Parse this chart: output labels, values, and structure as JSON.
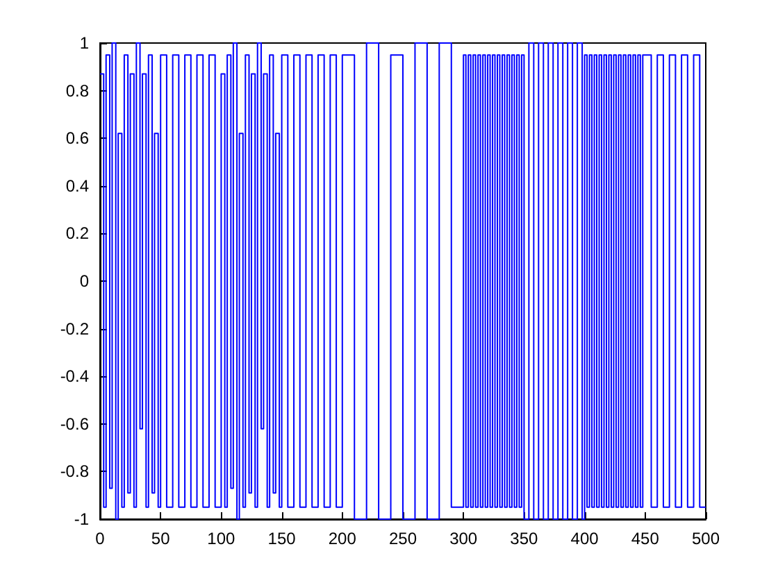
{
  "chart_data": {
    "type": "step",
    "color": "#0000ff",
    "x": [
      0,
      3,
      5,
      8,
      10,
      13,
      15,
      18,
      20,
      23,
      25,
      28,
      30,
      33,
      35,
      38,
      40,
      43,
      45,
      48,
      50,
      55,
      60,
      65,
      70,
      75,
      80,
      85,
      90,
      95,
      100,
      103,
      105,
      108,
      110,
      113,
      115,
      118,
      120,
      123,
      125,
      128,
      130,
      133,
      135,
      138,
      140,
      143,
      145,
      148,
      150,
      155,
      160,
      165,
      170,
      175,
      180,
      185,
      190,
      195,
      200,
      210,
      220,
      230,
      240,
      250,
      260,
      270,
      280,
      290,
      300,
      302,
      304,
      306,
      308,
      310,
      312,
      314,
      316,
      318,
      320,
      322,
      324,
      326,
      328,
      330,
      332,
      334,
      336,
      338,
      340,
      342,
      344,
      346,
      348,
      350,
      354,
      358,
      362,
      366,
      370,
      374,
      378,
      382,
      386,
      390,
      394,
      398,
      400,
      402,
      404,
      406,
      408,
      410,
      412,
      414,
      416,
      418,
      420,
      422,
      424,
      426,
      428,
      430,
      432,
      434,
      436,
      438,
      440,
      442,
      444,
      446,
      448,
      450,
      455,
      460,
      465,
      470,
      475,
      480,
      485,
      490,
      495,
      500
    ],
    "values": [
      0.87,
      -0.95,
      0.95,
      -0.87,
      1,
      -1,
      0.62,
      -0.95,
      0.95,
      -0.89,
      0.87,
      -0.95,
      1,
      -0.62,
      0.87,
      -0.95,
      0.95,
      -0.89,
      0.62,
      -0.95,
      0.95,
      -0.95,
      0.95,
      -0.95,
      0.95,
      -0.95,
      0.95,
      -0.95,
      0.95,
      -0.95,
      0.87,
      -0.95,
      0.95,
      -0.87,
      1,
      -1,
      0.62,
      -0.95,
      0.95,
      -0.89,
      0.87,
      -0.95,
      1,
      -0.62,
      0.87,
      -0.95,
      0.95,
      -0.89,
      0.62,
      -0.95,
      0.95,
      -0.95,
      0.95,
      -0.95,
      0.95,
      -0.95,
      0.95,
      -0.95,
      0.95,
      -0.95,
      0.95,
      -1,
      1,
      -1,
      0.95,
      -1,
      1,
      -1,
      1,
      -0.95,
      0.95,
      -0.95,
      0.95,
      -0.95,
      0.95,
      -0.95,
      0.95,
      -0.95,
      0.95,
      -0.95,
      0.95,
      -0.95,
      0.95,
      -0.95,
      0.95,
      -0.95,
      0.95,
      -0.95,
      0.95,
      -0.95,
      0.95,
      -0.95,
      0.95,
      -0.95,
      0.95,
      -1,
      1,
      -1,
      1,
      -1,
      1,
      -1,
      1,
      -1,
      1,
      -1,
      1,
      -1,
      0.95,
      -0.95,
      0.95,
      -0.95,
      0.95,
      -0.95,
      0.95,
      -0.95,
      0.95,
      -0.95,
      0.95,
      -0.95,
      0.95,
      -0.95,
      0.95,
      -0.95,
      0.95,
      -0.95,
      0.95,
      -0.95,
      0.95,
      -0.95,
      0.95,
      -0.95,
      0.95,
      0.95,
      -0.95,
      0.95,
      -0.95,
      0.95,
      -0.95,
      0.95,
      -0.95,
      0.95,
      -0.95,
      -0.95
    ],
    "xlim": [
      0,
      500
    ],
    "xticks": [
      0,
      50,
      100,
      150,
      200,
      250,
      300,
      350,
      400,
      450,
      500
    ],
    "ylim": [
      -1,
      1
    ],
    "yticks": [
      -1,
      -0.8,
      -0.6,
      -0.4,
      -0.2,
      0,
      0.2,
      0.4,
      0.6,
      0.8,
      1
    ]
  }
}
